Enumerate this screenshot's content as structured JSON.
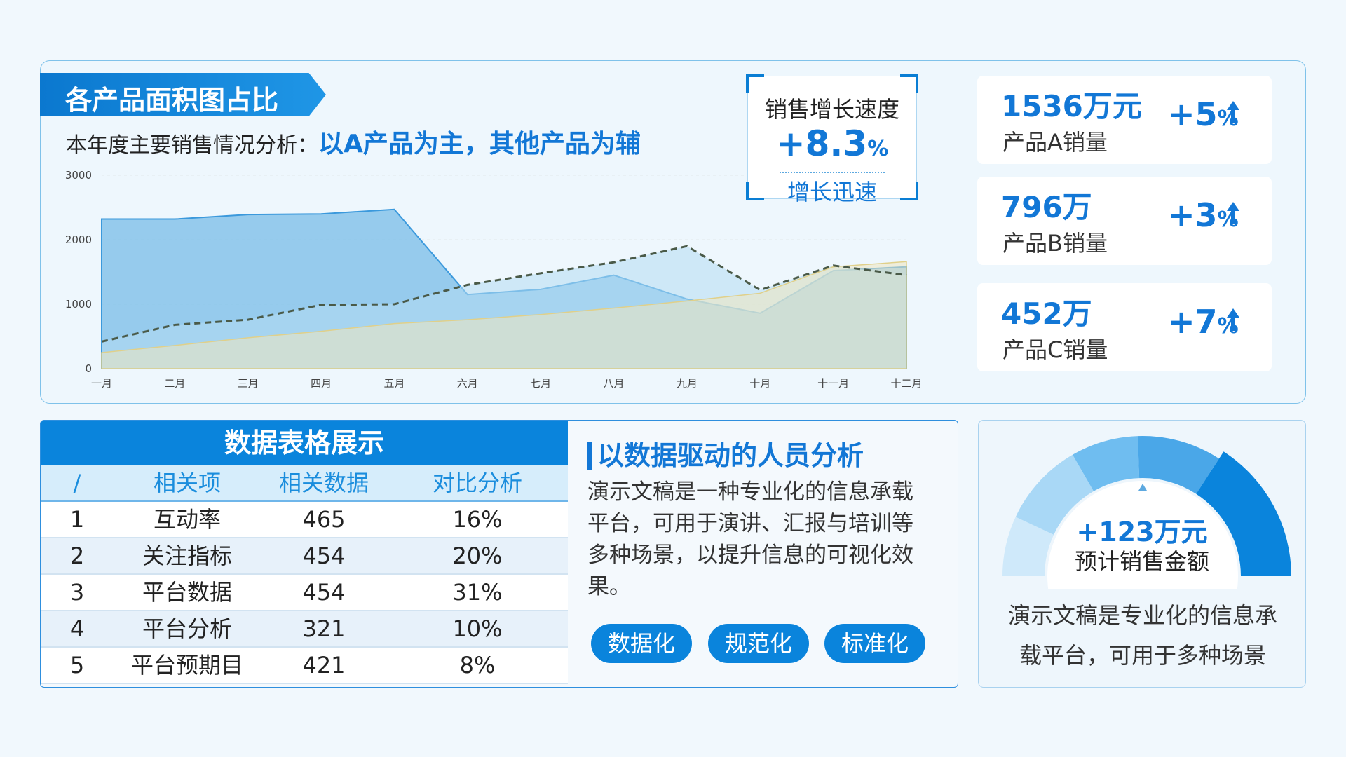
{
  "header": {
    "title": "各产品面积图占比",
    "subtitle_prefix": "本年度主要销售情况分析：",
    "subtitle_highlight": "以A产品为主，其他产品为辅"
  },
  "growth": {
    "label": "销售增长速度",
    "value": "+8.3",
    "unit": "%",
    "sub": "增长迅速"
  },
  "stats": [
    {
      "value": "1536万元",
      "label": "产品A销量",
      "pct": "+5",
      "unit": "%"
    },
    {
      "value": "796万",
      "label": "产品B销量",
      "pct": "+3",
      "unit": "%"
    },
    {
      "value": "452万",
      "label": "产品C销量",
      "pct": "+7",
      "unit": "%"
    }
  ],
  "table": {
    "title": "数据表格展示",
    "columns": [
      "/",
      "相关项",
      "相关数据",
      "对比分析"
    ],
    "rows": [
      [
        "1",
        "互动率",
        "465",
        "16%"
      ],
      [
        "2",
        "关注指标",
        "454",
        "20%"
      ],
      [
        "3",
        "平台数据",
        "454",
        "31%"
      ],
      [
        "4",
        "平台分析",
        "321",
        "10%"
      ],
      [
        "5",
        "平台预期目",
        "421",
        "8%"
      ]
    ]
  },
  "analysis": {
    "title": "以数据驱动的人员分析",
    "text": "演示文稿是一种专业化的信息承载平台，可用于演讲、汇报与培训等多种场景，以提升信息的可视化效果。",
    "tags": [
      "数据化",
      "规范化",
      "标准化"
    ]
  },
  "gauge": {
    "value": "+123万元",
    "label": "预计销售金额",
    "text": "演示文稿是专业化的信息承载平台，可用于多种场景",
    "level": 0.7
  },
  "colors": {
    "primary": "#0a84dc",
    "area_a": "#7fbfe9",
    "area_b": "#b5dcf3",
    "area_c": "#efe6c0",
    "dashed": "#4a5a48"
  },
  "chart_data": {
    "type": "area",
    "categories": [
      "一月",
      "二月",
      "三月",
      "四月",
      "五月",
      "六月",
      "七月",
      "八月",
      "九月",
      "十月",
      "十一月",
      "十二月"
    ],
    "ylim": [
      0,
      3000
    ],
    "yticks": [
      0,
      1000,
      2000,
      3000
    ],
    "series": [
      {
        "values": [
          2320,
          2320,
          2390,
          2400,
          2470,
          1150,
          1230,
          1450,
          1080,
          860,
          1520,
          1580
        ]
      },
      {
        "values": [
          420,
          680,
          760,
          990,
          1000,
          1300,
          1480,
          1650,
          1900,
          1220,
          1600,
          1450
        ]
      },
      {
        "values": [
          250,
          360,
          480,
          580,
          700,
          760,
          840,
          940,
          1050,
          1170,
          1580,
          1660
        ]
      }
    ]
  }
}
